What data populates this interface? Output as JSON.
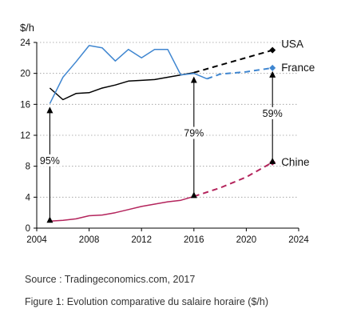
{
  "chart_data": {
    "type": "line",
    "ylabel": "$/h",
    "xlim": [
      2004,
      2024
    ],
    "ylim": [
      0,
      24
    ],
    "x_ticks": [
      2004,
      2008,
      2012,
      2016,
      2020,
      2024
    ],
    "y_ticks": [
      0,
      4,
      8,
      12,
      16,
      20,
      24
    ],
    "series": [
      {
        "name": "USA",
        "color": "#000000",
        "actual": [
          [
            2005,
            18.1
          ],
          [
            2006,
            16.6
          ],
          [
            2007,
            17.4
          ],
          [
            2008,
            17.5
          ],
          [
            2009,
            18.1
          ],
          [
            2010,
            18.5
          ],
          [
            2011,
            19.0
          ],
          [
            2012,
            19.1
          ],
          [
            2013,
            19.2
          ],
          [
            2014,
            19.5
          ],
          [
            2015,
            19.8
          ],
          [
            2016,
            20.1
          ]
        ],
        "projection": [
          [
            2016,
            20.1
          ],
          [
            2022,
            23.0
          ]
        ]
      },
      {
        "name": "France",
        "color": "#3f86d0",
        "actual": [
          [
            2005,
            16.1
          ],
          [
            2006,
            19.5
          ],
          [
            2007,
            21.5
          ],
          [
            2008,
            23.6
          ],
          [
            2009,
            23.3
          ],
          [
            2010,
            21.6
          ],
          [
            2011,
            23.1
          ],
          [
            2012,
            22.0
          ],
          [
            2013,
            23.1
          ],
          [
            2014,
            23.1
          ],
          [
            2015,
            19.8
          ],
          [
            2016,
            20.0
          ],
          [
            2017,
            19.3
          ]
        ],
        "projection": [
          [
            2017,
            19.3
          ],
          [
            2018,
            19.9
          ],
          [
            2020,
            20.2
          ],
          [
            2022,
            20.7
          ]
        ]
      },
      {
        "name": "Chine",
        "color": "#b4245c",
        "actual": [
          [
            2005,
            0.9
          ],
          [
            2006,
            1.0
          ],
          [
            2007,
            1.2
          ],
          [
            2008,
            1.6
          ],
          [
            2009,
            1.7
          ],
          [
            2010,
            2.0
          ],
          [
            2011,
            2.4
          ],
          [
            2012,
            2.8
          ],
          [
            2013,
            3.1
          ],
          [
            2014,
            3.4
          ],
          [
            2015,
            3.6
          ],
          [
            2016,
            4.1
          ]
        ],
        "projection": [
          [
            2016,
            4.1
          ],
          [
            2018,
            5.2
          ],
          [
            2020,
            6.6
          ],
          [
            2022,
            8.5
          ]
        ]
      }
    ],
    "annotations": [
      {
        "text": "95%",
        "x": 2005,
        "y_from": 0.9,
        "y_to": 16.1
      },
      {
        "text": "79%",
        "x": 2016,
        "y_from": 4.1,
        "y_to": 20.0
      },
      {
        "text": "59%",
        "x": 2022,
        "y_from": 8.5,
        "y_to": 20.7
      }
    ]
  },
  "source": "Source : Tradingeconomics.com, 2017",
  "caption": "Figure 1: Evolution comparative du salaire horaire ($/h)"
}
